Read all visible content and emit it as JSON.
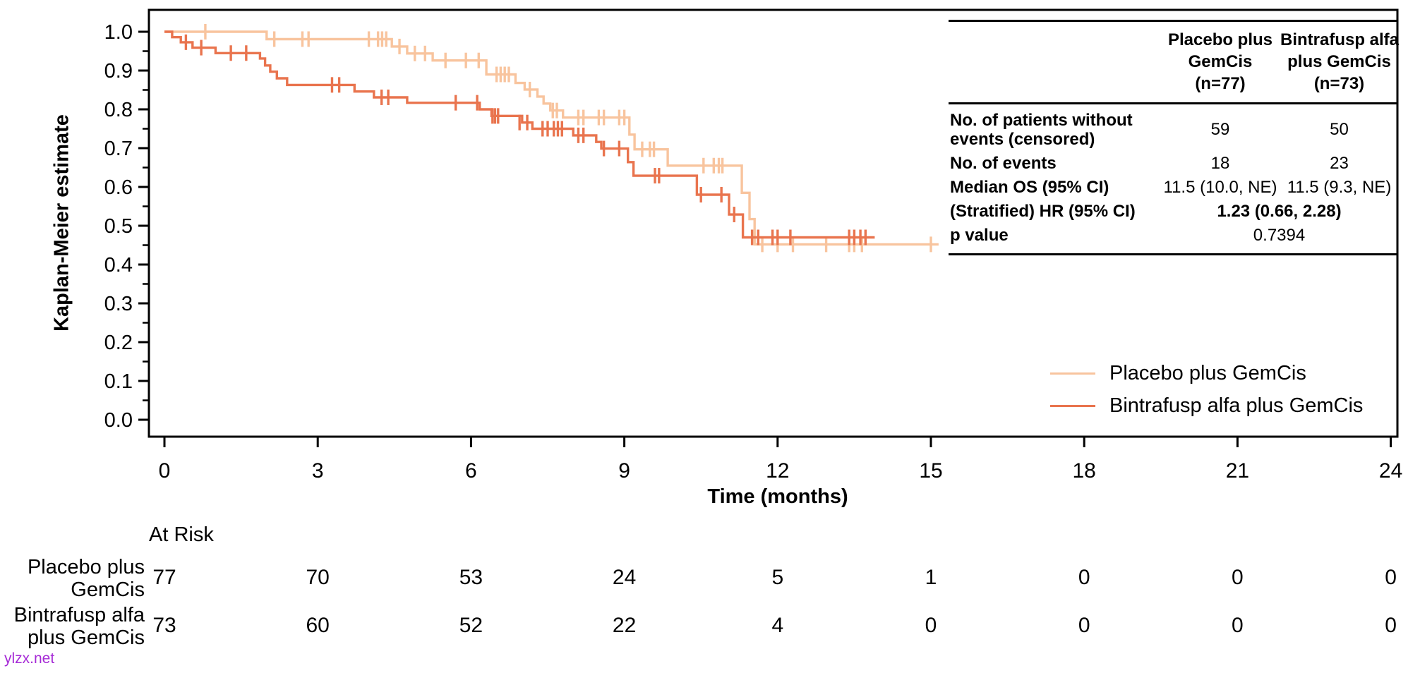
{
  "watermark": "ylzx.net",
  "colors": {
    "placebo": "#F8C49E",
    "bintrafusp": "#E9744E",
    "axis": "#000000",
    "watermark": "#A62BD6"
  },
  "chart_data": {
    "type": "line",
    "subtype": "kaplan-meier-step",
    "title": "",
    "xlabel": "Time (months)",
    "ylabel": "Kaplan-Meier estimate",
    "xlim": [
      0,
      24
    ],
    "ylim": [
      0.0,
      1.0
    ],
    "xticks": [
      0,
      3,
      6,
      9,
      12,
      15,
      18,
      21,
      24
    ],
    "yticks": [
      0.0,
      0.1,
      0.2,
      0.3,
      0.4,
      0.5,
      0.6,
      0.7,
      0.8,
      0.9,
      1.0
    ],
    "grid": false,
    "legend_position": "inside-bottom-right",
    "series": [
      {
        "name": "Placebo plus GemCis",
        "color": "#F8C49E",
        "end": 15.15,
        "steps": [
          [
            0,
            1.0
          ],
          [
            2.0,
            0.981
          ],
          [
            4.45,
            0.962
          ],
          [
            4.75,
            0.944
          ],
          [
            5.25,
            0.926
          ],
          [
            6.3,
            0.89
          ],
          [
            6.87,
            0.868
          ],
          [
            7.05,
            0.851
          ],
          [
            7.3,
            0.833
          ],
          [
            7.42,
            0.815
          ],
          [
            7.55,
            0.797
          ],
          [
            7.8,
            0.779
          ],
          [
            9.1,
            0.735
          ],
          [
            9.2,
            0.697
          ],
          [
            9.85,
            0.655
          ],
          [
            11.3,
            0.585
          ],
          [
            11.45,
            0.517
          ],
          [
            11.55,
            0.452
          ]
        ],
        "censors": [
          [
            0.8,
            1.0
          ],
          [
            2.15,
            0.981
          ],
          [
            2.7,
            0.981
          ],
          [
            2.82,
            0.981
          ],
          [
            4.0,
            0.981
          ],
          [
            4.18,
            0.981
          ],
          [
            4.26,
            0.981
          ],
          [
            4.34,
            0.981
          ],
          [
            4.6,
            0.962
          ],
          [
            4.9,
            0.944
          ],
          [
            5.1,
            0.944
          ],
          [
            5.5,
            0.926
          ],
          [
            5.9,
            0.926
          ],
          [
            6.15,
            0.926
          ],
          [
            6.5,
            0.89
          ],
          [
            6.58,
            0.89
          ],
          [
            6.66,
            0.89
          ],
          [
            6.74,
            0.89
          ],
          [
            7.15,
            0.851
          ],
          [
            7.6,
            0.797
          ],
          [
            7.68,
            0.797
          ],
          [
            8.1,
            0.779
          ],
          [
            8.2,
            0.779
          ],
          [
            8.5,
            0.779
          ],
          [
            8.6,
            0.779
          ],
          [
            8.9,
            0.779
          ],
          [
            9.0,
            0.779
          ],
          [
            9.35,
            0.697
          ],
          [
            9.5,
            0.697
          ],
          [
            9.58,
            0.697
          ],
          [
            10.55,
            0.655
          ],
          [
            10.75,
            0.655
          ],
          [
            10.85,
            0.655
          ],
          [
            10.92,
            0.655
          ],
          [
            11.7,
            0.452
          ],
          [
            12.0,
            0.452
          ],
          [
            12.3,
            0.452
          ],
          [
            12.95,
            0.452
          ],
          [
            13.4,
            0.452
          ],
          [
            13.5,
            0.452
          ],
          [
            13.65,
            0.452
          ],
          [
            15.0,
            0.452
          ]
        ]
      },
      {
        "name": "Bintrafusp alfa plus GemCis",
        "color": "#E9744E",
        "end": 13.9,
        "steps": [
          [
            0,
            1.0
          ],
          [
            0.15,
            0.986
          ],
          [
            0.32,
            0.973
          ],
          [
            0.55,
            0.959
          ],
          [
            1.0,
            0.945
          ],
          [
            1.87,
            0.931
          ],
          [
            1.97,
            0.913
          ],
          [
            2.07,
            0.897
          ],
          [
            2.2,
            0.88
          ],
          [
            2.4,
            0.863
          ],
          [
            3.72,
            0.846
          ],
          [
            4.1,
            0.831
          ],
          [
            4.75,
            0.817
          ],
          [
            6.17,
            0.8
          ],
          [
            6.4,
            0.783
          ],
          [
            7.0,
            0.766
          ],
          [
            7.2,
            0.75
          ],
          [
            8.0,
            0.733
          ],
          [
            8.45,
            0.716
          ],
          [
            8.55,
            0.699
          ],
          [
            9.07,
            0.664
          ],
          [
            9.18,
            0.629
          ],
          [
            10.42,
            0.58
          ],
          [
            11.05,
            0.529
          ],
          [
            11.32,
            0.47
          ]
        ],
        "censors": [
          [
            0.42,
            0.973
          ],
          [
            0.72,
            0.959
          ],
          [
            1.3,
            0.945
          ],
          [
            1.6,
            0.945
          ],
          [
            3.28,
            0.863
          ],
          [
            3.42,
            0.863
          ],
          [
            4.25,
            0.831
          ],
          [
            4.38,
            0.831
          ],
          [
            5.7,
            0.817
          ],
          [
            6.12,
            0.817
          ],
          [
            6.42,
            0.783
          ],
          [
            6.47,
            0.783
          ],
          [
            6.53,
            0.783
          ],
          [
            6.95,
            0.766
          ],
          [
            7.1,
            0.766
          ],
          [
            7.4,
            0.75
          ],
          [
            7.5,
            0.75
          ],
          [
            7.62,
            0.75
          ],
          [
            7.7,
            0.75
          ],
          [
            7.78,
            0.75
          ],
          [
            8.1,
            0.733
          ],
          [
            8.2,
            0.733
          ],
          [
            8.6,
            0.699
          ],
          [
            8.9,
            0.699
          ],
          [
            9.6,
            0.629
          ],
          [
            9.68,
            0.629
          ],
          [
            10.5,
            0.58
          ],
          [
            10.9,
            0.58
          ],
          [
            11.15,
            0.529
          ],
          [
            11.5,
            0.47
          ],
          [
            11.62,
            0.47
          ],
          [
            11.9,
            0.47
          ],
          [
            12.0,
            0.47
          ],
          [
            12.25,
            0.47
          ],
          [
            13.4,
            0.47
          ],
          [
            13.5,
            0.47
          ],
          [
            13.62,
            0.47
          ],
          [
            13.72,
            0.47
          ]
        ]
      }
    ]
  },
  "stats_table": {
    "col_headers": [
      "Placebo plus\nGemCis\n(n=77)",
      "Bintrafusp alfa\nplus GemCis\n(n=73)"
    ],
    "rows": [
      {
        "label": "No. of patients without events (censored)",
        "placebo": "59",
        "bintrafusp": "50",
        "span": false,
        "bold_value": false
      },
      {
        "label": "No. of events",
        "placebo": "18",
        "bintrafusp": "23",
        "span": false,
        "bold_value": false
      },
      {
        "label": "Median OS (95% CI)",
        "placebo": "11.5 (10.0, NE)",
        "bintrafusp": "11.5 (9.3, NE)",
        "span": false,
        "bold_value": false
      },
      {
        "label": "(Stratified) HR (95% CI)",
        "value": "1.23 (0.66, 2.28)",
        "span": true,
        "bold_value": true
      },
      {
        "label": "p value",
        "value": "0.7394",
        "span": true,
        "bold_value": false
      }
    ]
  },
  "legend": {
    "items": [
      {
        "label": "Placebo plus GemCis",
        "color": "#F8C49E"
      },
      {
        "label": "Bintrafusp alfa plus GemCis",
        "color": "#E9744E"
      }
    ]
  },
  "at_risk": {
    "title": "At Risk",
    "rows": [
      {
        "label": "Placebo plus\nGemCis",
        "counts": [
          "77",
          "70",
          "53",
          "24",
          "5",
          "1",
          "0",
          "0",
          "0"
        ]
      },
      {
        "label": "Bintrafusp alfa\nplus GemCis",
        "counts": [
          "73",
          "60",
          "52",
          "22",
          "4",
          "0",
          "0",
          "0",
          "0"
        ]
      }
    ]
  }
}
